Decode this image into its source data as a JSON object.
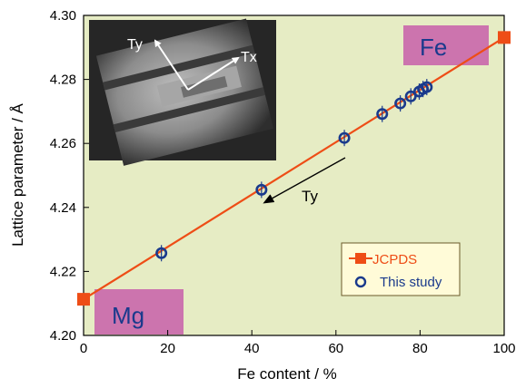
{
  "chart_data": {
    "type": "scatter",
    "xlabel": "Fe content / %",
    "ylabel": "Lattice parameter / Å",
    "xlim": [
      0,
      100
    ],
    "ylim": [
      4.2,
      4.3
    ],
    "x_ticks": [
      "0",
      "20",
      "40",
      "60",
      "80",
      "100"
    ],
    "y_ticks": [
      "4.20",
      "4.22",
      "4.24",
      "4.26",
      "4.28",
      "4.30"
    ],
    "grid": false,
    "legend_position": "bottom-right",
    "series": [
      {
        "name": "JCPDS",
        "marker": "square",
        "line": true,
        "color": "#ee4d16",
        "points": [
          {
            "x": 0,
            "y": 4.2113
          },
          {
            "x": 100,
            "y": 4.2931
          }
        ]
      },
      {
        "name": "This study",
        "marker": "open-circle",
        "line": false,
        "color": "#1a3a8c",
        "points": [
          {
            "x": 18.5,
            "y": 4.2257
          },
          {
            "x": 42.3,
            "y": 4.2455
          },
          {
            "x": 62.0,
            "y": 4.2617
          },
          {
            "x": 71.0,
            "y": 4.2692
          },
          {
            "x": 75.3,
            "y": 4.2725
          },
          {
            "x": 77.8,
            "y": 4.2747
          },
          {
            "x": 79.8,
            "y": 4.2762
          },
          {
            "x": 80.7,
            "y": 4.277
          },
          {
            "x": 81.6,
            "y": 4.2776
          }
        ]
      }
    ],
    "annotations": {
      "mg_label": "Mg",
      "fe_label": "Fe",
      "ty_label": "Ty",
      "inset_ty_label": "Ty",
      "inset_tx_label": "Tx"
    },
    "colors": {
      "plot_background": "#e6ecc4",
      "label_box": "#cc74ae",
      "fit_line": "#ee4d16",
      "circle": "#1a3a8c"
    }
  }
}
